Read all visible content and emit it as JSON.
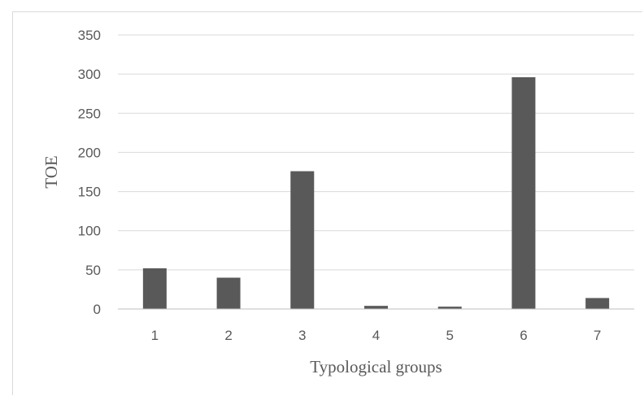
{
  "chart_data": {
    "type": "bar",
    "categories": [
      "1",
      "2",
      "3",
      "4",
      "5",
      "6",
      "7"
    ],
    "values": [
      52,
      40,
      176,
      4,
      3,
      296,
      14
    ],
    "xlabel": "Typological groups",
    "ylabel": "TOE",
    "ylim": [
      0,
      350
    ],
    "yticks": [
      0,
      50,
      100,
      150,
      200,
      250,
      300,
      350
    ],
    "grid": true,
    "legend": "none",
    "colors": {
      "bar": "#595959",
      "grid": "#d9d9d9",
      "axis": "#bfbfbf",
      "text": "#595959"
    }
  }
}
